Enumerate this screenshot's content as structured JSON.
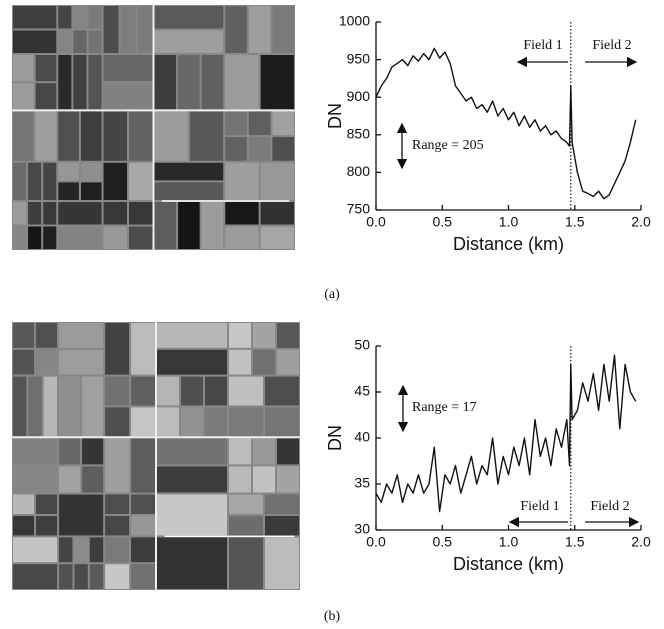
{
  "chart_data": [
    {
      "type": "line",
      "caption": "(a)",
      "xlabel": "Distance (km)",
      "ylabel": "DN",
      "color": "#111111",
      "annotations": [
        "Field 1",
        "Field 2",
        "Range = 205"
      ],
      "divider_x": 1.47,
      "xlim": [
        0,
        2
      ],
      "ylim": [
        750,
        1000
      ],
      "xticks": [
        {
          "value": 0,
          "label": "0.0"
        },
        {
          "value": 0.5,
          "label": "0.5"
        },
        {
          "value": 1,
          "label": "1.0"
        },
        {
          "value": 1.5,
          "label": "1.5"
        },
        {
          "value": 2,
          "label": "2.0"
        }
      ],
      "yticks": [
        750,
        800,
        850,
        900,
        950,
        1000
      ],
      "x": [
        0,
        0.04,
        0.08,
        0.12,
        0.16,
        0.2,
        0.24,
        0.28,
        0.32,
        0.36,
        0.4,
        0.44,
        0.48,
        0.52,
        0.56,
        0.6,
        0.64,
        0.68,
        0.72,
        0.76,
        0.8,
        0.84,
        0.88,
        0.92,
        0.96,
        1.0,
        1.04,
        1.08,
        1.12,
        1.16,
        1.2,
        1.24,
        1.28,
        1.32,
        1.36,
        1.4,
        1.44,
        1.46,
        1.47,
        1.48,
        1.52,
        1.56,
        1.6,
        1.64,
        1.68,
        1.72,
        1.76,
        1.8,
        1.84,
        1.88,
        1.92,
        1.96
      ],
      "values": [
        900,
        915,
        925,
        940,
        945,
        950,
        942,
        955,
        948,
        958,
        950,
        965,
        952,
        960,
        945,
        915,
        905,
        895,
        900,
        885,
        890,
        880,
        895,
        875,
        885,
        870,
        880,
        862,
        875,
        860,
        870,
        855,
        862,
        850,
        855,
        845,
        840,
        835,
        915,
        840,
        800,
        775,
        772,
        768,
        775,
        765,
        770,
        785,
        800,
        815,
        840,
        870
      ]
    },
    {
      "type": "line",
      "caption": "(b)",
      "xlabel": "Distance (km)",
      "ylabel": "DN",
      "color": "#111111",
      "annotations": [
        "Field 1",
        "Field 2",
        "Range = 17"
      ],
      "divider_x": 1.47,
      "xlim": [
        0,
        2
      ],
      "ylim": [
        30,
        50
      ],
      "xticks": [
        {
          "value": 0,
          "label": "0.0"
        },
        {
          "value": 0.5,
          "label": "0.5"
        },
        {
          "value": 1,
          "label": "1.0"
        },
        {
          "value": 1.5,
          "label": "1.5"
        },
        {
          "value": 2,
          "label": "2.0"
        }
      ],
      "yticks": [
        30,
        35,
        40,
        45,
        50
      ],
      "x": [
        0,
        0.04,
        0.08,
        0.12,
        0.16,
        0.2,
        0.24,
        0.28,
        0.32,
        0.36,
        0.4,
        0.44,
        0.48,
        0.52,
        0.56,
        0.6,
        0.64,
        0.68,
        0.72,
        0.76,
        0.8,
        0.84,
        0.88,
        0.92,
        0.96,
        1.0,
        1.04,
        1.08,
        1.12,
        1.16,
        1.2,
        1.24,
        1.28,
        1.32,
        1.36,
        1.4,
        1.44,
        1.46,
        1.47,
        1.48,
        1.52,
        1.56,
        1.6,
        1.64,
        1.68,
        1.72,
        1.76,
        1.8,
        1.84,
        1.88,
        1.92,
        1.96
      ],
      "values": [
        34,
        33,
        35,
        34,
        36,
        33,
        35,
        34,
        36,
        34,
        35,
        39,
        32,
        36,
        35,
        37,
        34,
        36,
        38,
        35,
        37,
        36,
        40,
        35,
        38,
        36,
        39,
        37,
        40,
        36,
        42,
        38,
        40,
        37,
        41,
        39,
        42,
        37,
        48,
        42,
        43,
        46,
        44,
        47,
        43,
        48,
        44,
        49,
        41,
        48,
        45,
        44
      ]
    }
  ]
}
